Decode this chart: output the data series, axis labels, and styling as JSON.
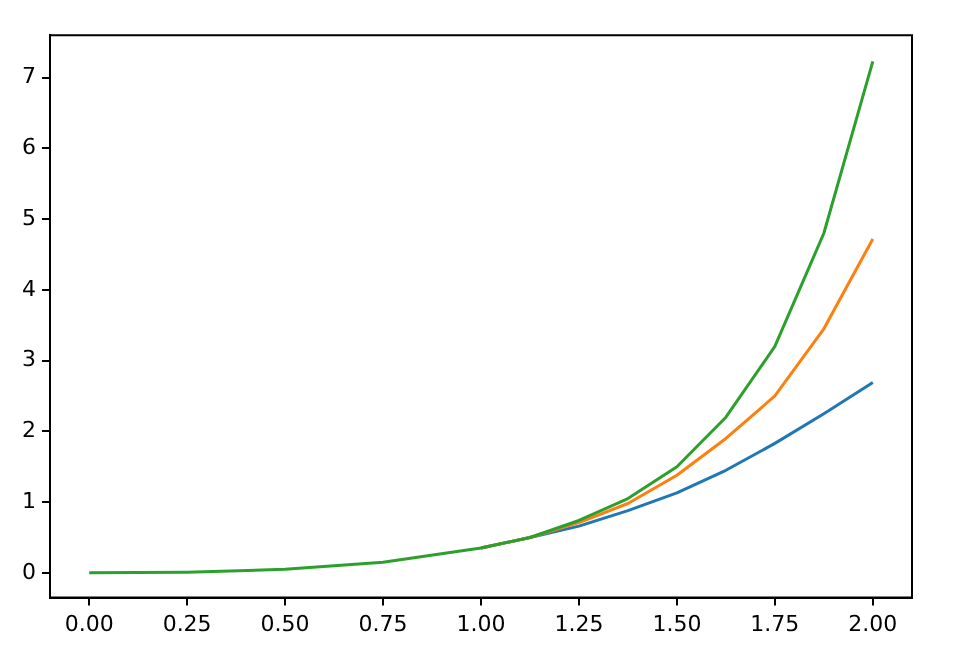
{
  "chart_data": {
    "type": "line",
    "xlim": [
      -0.1,
      2.1
    ],
    "ylim": [
      -0.35,
      7.6
    ],
    "xticks": [
      {
        "value": 0,
        "label": "0.00"
      },
      {
        "value": 0.25,
        "label": "0.25"
      },
      {
        "value": 0.5,
        "label": "0.50"
      },
      {
        "value": 0.75,
        "label": "0.75"
      },
      {
        "value": 1,
        "label": "1.00"
      },
      {
        "value": 1.25,
        "label": "1.25"
      },
      {
        "value": 1.5,
        "label": "1.50"
      },
      {
        "value": 1.75,
        "label": "1.75"
      },
      {
        "value": 2,
        "label": "2.00"
      }
    ],
    "yticks": [
      0,
      1,
      2,
      3,
      4,
      5,
      6,
      7
    ],
    "grid": false,
    "legend": false,
    "marker": "none",
    "line_style": "solid",
    "x": [
      0,
      0.25,
      0.5,
      0.75,
      1,
      1.125,
      1.25,
      1.375,
      1.5,
      1.625,
      1.75,
      1.875,
      2
    ],
    "series": [
      {
        "color": "#1f77b4",
        "values": [
          null,
          null,
          null,
          null,
          0.35,
          0.5,
          0.66,
          0.88,
          1.13,
          1.45,
          1.83,
          2.25,
          2.69
        ]
      },
      {
        "color": "#ff7f0e",
        "values": [
          null,
          null,
          null,
          null,
          0.35,
          0.5,
          0.71,
          0.98,
          1.38,
          1.9,
          2.5,
          3.45,
          4.72
        ]
      },
      {
        "color": "#2ca02c",
        "values": [
          0,
          0.01,
          0.05,
          0.15,
          0.35,
          0.5,
          0.74,
          1.05,
          1.5,
          2.2,
          3.2,
          4.8,
          7.23
        ]
      }
    ]
  }
}
